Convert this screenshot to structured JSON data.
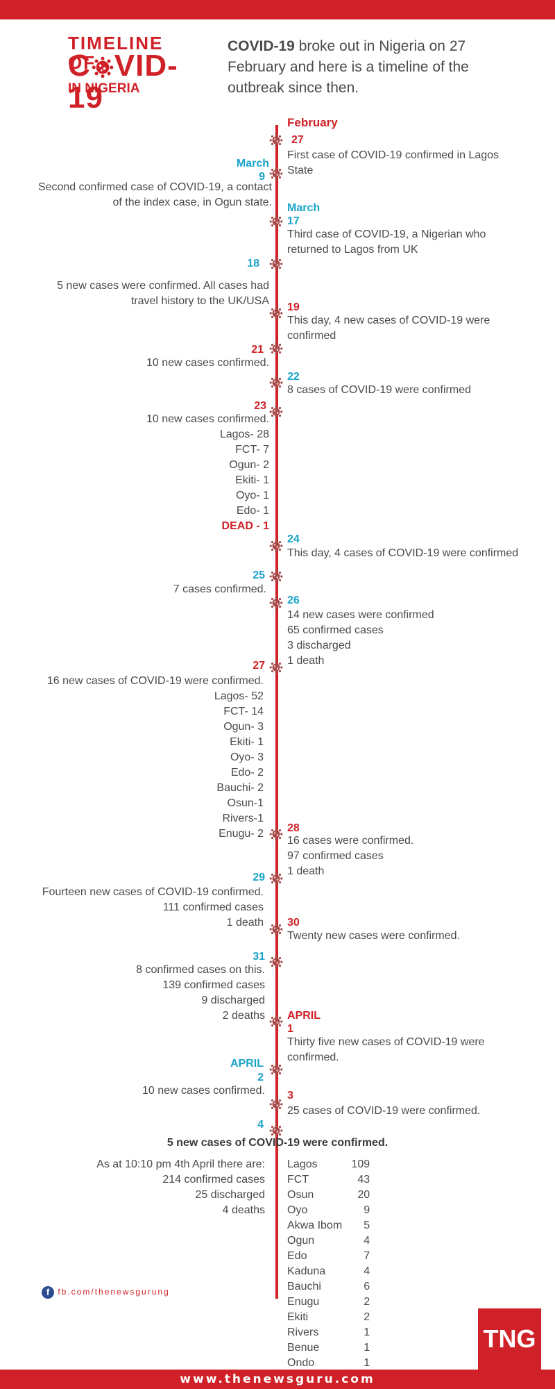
{
  "header": {
    "logo_line1": "TIMELINE OF",
    "logo_line2_pre": "C",
    "logo_line2_post": "VID-19",
    "logo_line3": "IN NIGERIA",
    "intro_bold": "COVID-19",
    "intro_rest": " broke out in Nigeria on 27 February and here is a timeline of the outbreak since then."
  },
  "events": {
    "feb_label": "February",
    "e1_day": "27",
    "e1_text": "First case of COVID-19 confirmed in Lagos State",
    "e2_month": "March",
    "e2_day": "9",
    "e2_text": "Second confirmed case of COVID-19, a contact of the index case, in Ogun state.",
    "e3_month": "March",
    "e3_day": "17",
    "e3_text": "Third case of COVID-19, a Nigerian who returned to Lagos from UK",
    "e4_day": "18",
    "e4_text": "5 new cases were confirmed. All cases had travel history to the UK/USA",
    "e5_day": "19",
    "e5_text": "This day, 4 new cases of COVID-19 were confirmed",
    "e6_day": "21",
    "e6_text": "10 new cases confirmed.",
    "e7_day": "22",
    "e7_text": "8 cases of COVID-19 were confirmed",
    "e8_day": "23",
    "e8_lines": [
      "10 new cases confirmed.",
      "Lagos- 28",
      "FCT- 7",
      "Ogun- 2",
      "Ekiti- 1",
      "Oyo- 1",
      "Edo- 1"
    ],
    "e8_dead": "DEAD - 1",
    "e9_day": "24",
    "e9_text": "This day, 4 cases of COVID-19 were confirmed",
    "e10_day": "25",
    "e10_text": "7 cases confirmed.",
    "e11_day": "26",
    "e11_lines": [
      "14 new cases were confirmed",
      "65 confirmed cases",
      "3 discharged",
      "1 death"
    ],
    "e12_day": "27",
    "e12_lines": [
      "16 new cases of COVID-19 were confirmed.",
      "Lagos- 52",
      "FCT- 14",
      "Ogun- 3",
      "Ekiti- 1",
      "Oyo- 3",
      "Edo- 2",
      "Bauchi- 2",
      "Osun-1",
      "Rivers-1",
      "Enugu- 2"
    ],
    "e13_day": "28",
    "e13_lines": [
      "16 cases were confirmed.",
      "97 confirmed cases",
      "1 death"
    ],
    "e14_day": "29",
    "e14_lines": [
      "Fourteen new cases of COVID-19 confirmed.",
      "111 confirmed cases",
      "1 death"
    ],
    "e15_day": "30",
    "e15_text": "Twenty new cases were confirmed.",
    "e16_day": "31",
    "e16_lines": [
      "8 confirmed cases on this.",
      "139 confirmed cases",
      "9 discharged",
      "2 deaths"
    ],
    "e17_month": "APRIL",
    "e17_day": "1",
    "e17_text": "Thirty five new cases of COVID-19 were confirmed.",
    "e18_month": "APRIL",
    "e18_day": "2",
    "e18_text": "10 new cases confirmed.",
    "e19_day": "3",
    "e19_text": "25 cases of COVID-19 were confirmed.",
    "e20_day": "4",
    "e20_headline": "5 new cases of COVID-19 were confirmed.",
    "e20_lines": [
      "As at 10:10 pm 4th April there are:",
      "214 confirmed cases",
      "25 discharged",
      "4 deaths"
    ]
  },
  "states_table": [
    {
      "state": "Lagos",
      "count": "109"
    },
    {
      "state": "FCT",
      "count": "43"
    },
    {
      "state": "Osun",
      "count": "20"
    },
    {
      "state": "Oyo",
      "count": "9"
    },
    {
      "state": "Akwa Ibom",
      "count": "5"
    },
    {
      "state": "Ogun",
      "count": "4"
    },
    {
      "state": "Edo",
      "count": "7"
    },
    {
      "state": "Kaduna",
      "count": "4"
    },
    {
      "state": "Bauchi",
      "count": "6"
    },
    {
      "state": "Enugu",
      "count": "2"
    },
    {
      "state": "Ekiti",
      "count": "2"
    },
    {
      "state": "Rivers",
      "count": "1"
    },
    {
      "state": "Benue",
      "count": "1"
    },
    {
      "state": "Ondo",
      "count": "1"
    }
  ],
  "footer": {
    "facebook_icon": "facebook-icon",
    "facebook_text": "fb.com/thenewsgurung",
    "brand_logo": "TNG",
    "website": "www.thenewsguru.com"
  },
  "colors": {
    "accent_red": "#cf2127",
    "accent_blue": "#1aa3c9",
    "text_gray": "#4a4a4a"
  }
}
